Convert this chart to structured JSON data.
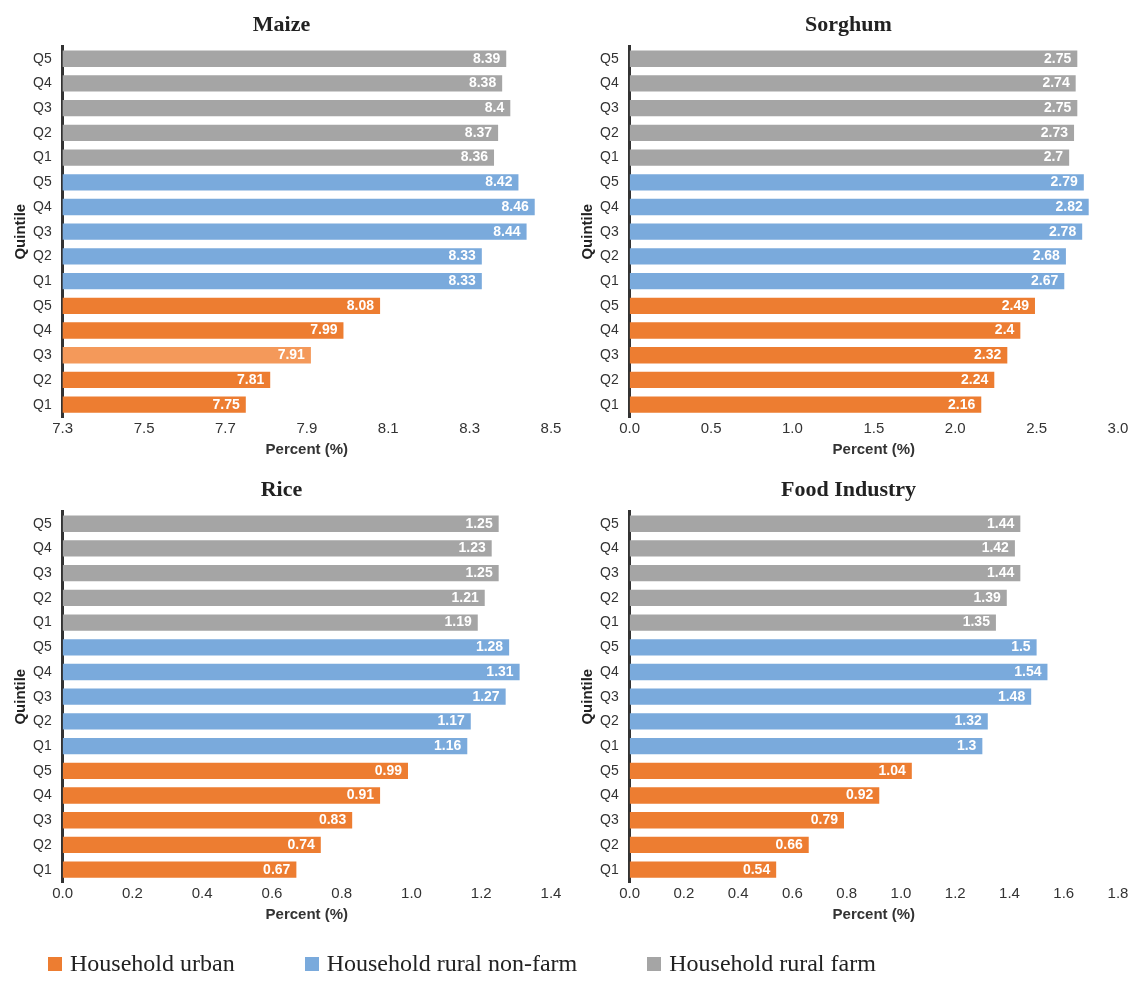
{
  "chart_data": [
    {
      "type": "bar",
      "orientation": "horizontal",
      "title": "Maize",
      "xlabel": "Percent (%)",
      "ylabel": "Quintile",
      "categories": [
        "Q5",
        "Q4",
        "Q3",
        "Q2",
        "Q1",
        "Q5",
        "Q4",
        "Q3",
        "Q2",
        "Q1",
        "Q5",
        "Q4",
        "Q3",
        "Q2",
        "Q1"
      ],
      "series": [
        {
          "name": "Household urban",
          "color": "#ed7d31",
          "colors": [
            null,
            null,
            null,
            null,
            null,
            null,
            null,
            null,
            null,
            null,
            "#ed7d31",
            "#ed7d31",
            "#f4995a",
            "#ed7d31",
            "#ed7d31"
          ],
          "values": [
            null,
            null,
            null,
            null,
            null,
            null,
            null,
            null,
            null,
            null,
            8.08,
            7.99,
            7.91,
            7.81,
            7.75
          ]
        },
        {
          "name": "Household rural non-farm",
          "color": "#7aaadc",
          "values": [
            null,
            null,
            null,
            null,
            null,
            8.42,
            8.46,
            8.44,
            8.33,
            8.33,
            null,
            null,
            null,
            null,
            null
          ]
        },
        {
          "name": "Household rural farm",
          "color": "#a5a5a5",
          "values": [
            8.39,
            8.38,
            8.4,
            8.37,
            8.36,
            null,
            null,
            null,
            null,
            null,
            null,
            null,
            null,
            null,
            null
          ]
        }
      ],
      "xlim": [
        7.3,
        8.5
      ],
      "xticks": [
        7.3,
        7.5,
        7.7,
        7.9,
        8.1,
        8.3,
        8.5
      ],
      "data_labels": true,
      "grid": false,
      "legend": "bottom"
    },
    {
      "type": "bar",
      "orientation": "horizontal",
      "title": "Sorghum",
      "xlabel": "Percent (%)",
      "ylabel": "Quintile",
      "categories": [
        "Q5",
        "Q4",
        "Q3",
        "Q2",
        "Q1",
        "Q5",
        "Q4",
        "Q3",
        "Q2",
        "Q1",
        "Q5",
        "Q4",
        "Q3",
        "Q2",
        "Q1"
      ],
      "series": [
        {
          "color": "#ed7d31",
          "values": [
            null,
            null,
            null,
            null,
            null,
            null,
            null,
            null,
            null,
            null,
            2.49,
            2.4,
            2.32,
            2.24,
            2.16
          ]
        },
        {
          "color": "#7aaadc",
          "values": [
            null,
            null,
            null,
            null,
            null,
            2.79,
            2.82,
            2.78,
            2.68,
            2.67,
            null,
            null,
            null,
            null,
            null
          ]
        },
        {
          "color": "#a5a5a5",
          "values": [
            2.75,
            2.74,
            2.75,
            2.73,
            2.7,
            null,
            null,
            null,
            null,
            null,
            null,
            null,
            null,
            null,
            null
          ]
        }
      ],
      "xlim": [
        0,
        3
      ],
      "xticks": [
        {
          "value": 0,
          "label": "0.0"
        },
        {
          "value": 0.5,
          "label": "0.5"
        },
        {
          "value": 1,
          "label": "1.0"
        },
        {
          "value": 1.5,
          "label": "1.5"
        },
        {
          "value": 2,
          "label": "2.0"
        },
        {
          "value": 2.5,
          "label": "2.5"
        },
        {
          "value": 3,
          "label": "3.0"
        }
      ],
      "data_labels": true,
      "grid": false
    },
    {
      "type": "bar",
      "orientation": "horizontal",
      "title": "Rice",
      "xlabel": "Percent (%)",
      "ylabel": "Quintile",
      "categories": [
        "Q5",
        "Q4",
        "Q3",
        "Q2",
        "Q1",
        "Q5",
        "Q4",
        "Q3",
        "Q2",
        "Q1",
        "Q5",
        "Q4",
        "Q3",
        "Q2",
        "Q1"
      ],
      "series": [
        {
          "color": "#ed7d31",
          "values": [
            null,
            null,
            null,
            null,
            null,
            null,
            null,
            null,
            null,
            null,
            0.99,
            0.91,
            0.83,
            0.74,
            0.67
          ]
        },
        {
          "color": "#7aaadc",
          "values": [
            null,
            null,
            null,
            null,
            null,
            1.28,
            1.31,
            1.27,
            1.17,
            1.16,
            null,
            null,
            null,
            null,
            null
          ]
        },
        {
          "color": "#a5a5a5",
          "values": [
            1.25,
            1.23,
            1.25,
            1.21,
            1.19,
            null,
            null,
            null,
            null,
            null,
            null,
            null,
            null,
            null,
            null
          ]
        }
      ],
      "xlim": [
        0,
        1.4
      ],
      "xticks": [
        {
          "value": 0,
          "label": "0.0"
        },
        0.2,
        0.4,
        0.6,
        0.8,
        {
          "value": 1,
          "label": "1.0"
        },
        1.2,
        1.4
      ],
      "data_labels": true,
      "grid": false
    },
    {
      "type": "bar",
      "orientation": "horizontal",
      "title": "Food Industry",
      "xlabel": "Percent (%)",
      "ylabel": "Quintile",
      "categories": [
        "Q5",
        "Q4",
        "Q3",
        "Q2",
        "Q1",
        "Q5",
        "Q4",
        "Q3",
        "Q2",
        "Q1",
        "Q5",
        "Q4",
        "Q3",
        "Q2",
        "Q1"
      ],
      "series": [
        {
          "color": "#ed7d31",
          "values": [
            null,
            null,
            null,
            null,
            null,
            null,
            null,
            null,
            null,
            null,
            1.04,
            0.92,
            0.79,
            0.66,
            0.54
          ]
        },
        {
          "color": "#7aaadc",
          "values": [
            null,
            null,
            null,
            null,
            null,
            1.5,
            1.54,
            1.48,
            1.32,
            1.3,
            null,
            null,
            null,
            null,
            null
          ]
        },
        {
          "color": "#a5a5a5",
          "values": [
            1.44,
            1.42,
            1.44,
            1.39,
            1.35,
            null,
            null,
            null,
            null,
            null,
            null,
            null,
            null,
            null,
            null
          ]
        }
      ],
      "xlim": [
        0,
        1.8
      ],
      "xticks": [
        {
          "value": 0,
          "label": "0.0"
        },
        0.2,
        0.4,
        0.6,
        0.8,
        {
          "value": 1,
          "label": "1.0"
        },
        1.2,
        1.4,
        1.6,
        1.8
      ],
      "data_labels": true,
      "grid": false
    }
  ]
}
